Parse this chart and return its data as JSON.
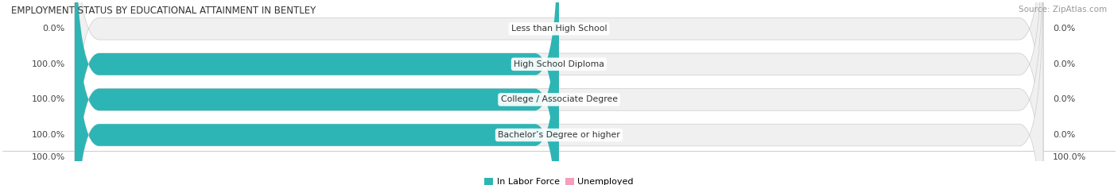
{
  "title": "EMPLOYMENT STATUS BY EDUCATIONAL ATTAINMENT IN BENTLEY",
  "source": "Source: ZipAtlas.com",
  "categories": [
    "Less than High School",
    "High School Diploma",
    "College / Associate Degree",
    "Bachelor’s Degree or higher"
  ],
  "labor_force": [
    0.0,
    100.0,
    100.0,
    100.0
  ],
  "unemployed": [
    0.0,
    0.0,
    0.0,
    0.0
  ],
  "color_labor": "#2db5b5",
  "color_unemployed": "#f4a0bc",
  "color_bar_bg": "#e6e6e6",
  "color_bar_bg_light": "#f0f0f0",
  "figsize": [
    14.06,
    2.33
  ],
  "dpi": 100,
  "bottom_left_text": "100.0%",
  "bottom_right_text": "100.0%",
  "legend_labels": [
    "In Labor Force",
    "Unemployed"
  ]
}
